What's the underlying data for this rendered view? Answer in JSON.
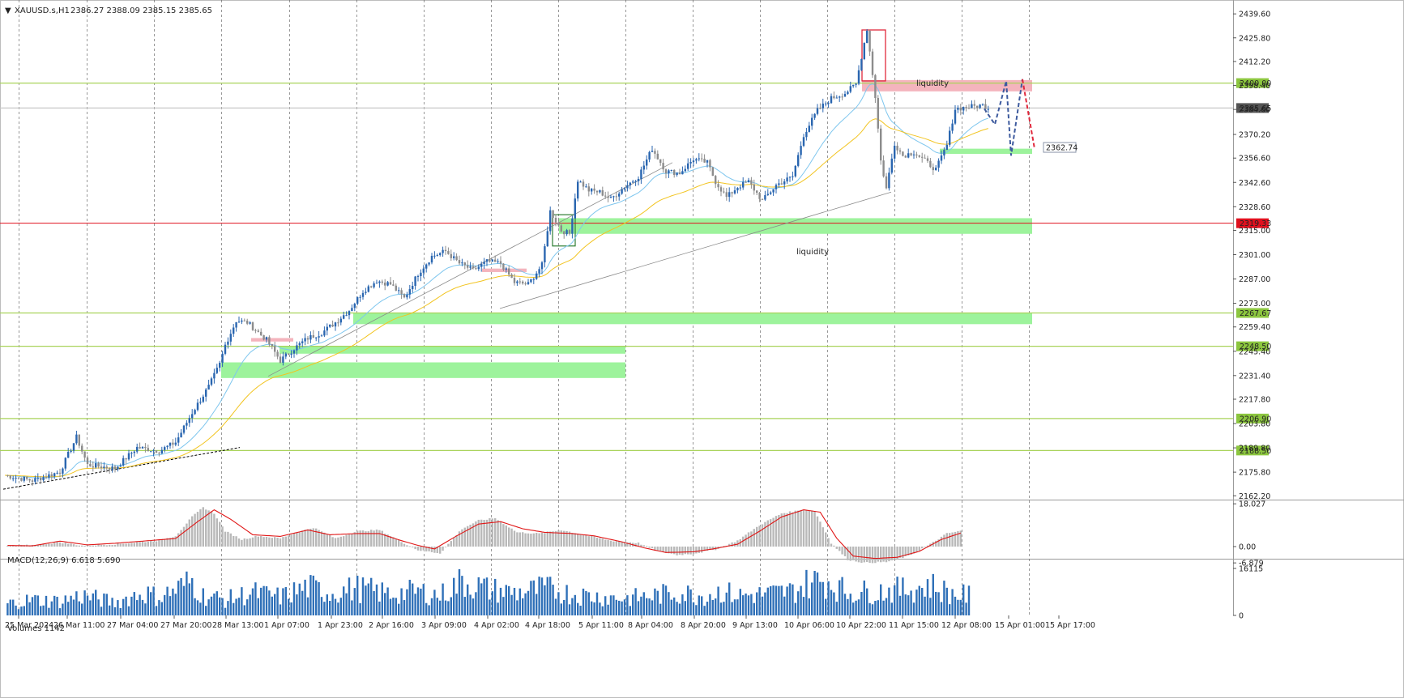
{
  "header": {
    "symbol": "XAUUSD.s,H1",
    "ohlc": "2386.27 2388.09 2385.15 2385.65"
  },
  "chart_data": {
    "type": "candlestick",
    "symbol": "XAUUSD.s",
    "timeframe": "H1",
    "price_axis_ticks": [
      "2439.60",
      "2425.80",
      "2412.20",
      "2398.40",
      "2384.60",
      "2370.20",
      "2356.60",
      "2342.60",
      "2328.60",
      "2315.00",
      "2301.00",
      "2287.00",
      "2273.00",
      "2259.40",
      "2245.40",
      "2231.40",
      "2217.80",
      "2203.80",
      "2189.80",
      "2175.80",
      "2162.20"
    ],
    "ylim": [
      2160,
      2442
    ],
    "time_labels": [
      "25 Mar 2024",
      "26 Mar 11:00",
      "27 Mar 04:00",
      "27 Mar 20:00",
      "28 Mar 13:00",
      "1 Apr 07:00",
      "1 Apr 23:00",
      "2 Apr 16:00",
      "3 Apr 09:00",
      "4 Apr 02:00",
      "4 Apr 18:00",
      "5 Apr 11:00",
      "8 Apr 04:00",
      "8 Apr 20:00",
      "9 Apr 13:00",
      "10 Apr 06:00",
      "10 Apr 22:00",
      "11 Apr 15:00",
      "12 Apr 08:00",
      "15 Apr 01:00",
      "15 Apr 17:00"
    ],
    "price_path": [
      [
        0,
        2174
      ],
      [
        10,
        2171
      ],
      [
        20,
        2176
      ],
      [
        26,
        2196
      ],
      [
        30,
        2180
      ],
      [
        40,
        2178
      ],
      [
        48,
        2190
      ],
      [
        56,
        2188
      ],
      [
        62,
        2193
      ],
      [
        68,
        2210
      ],
      [
        74,
        2225
      ],
      [
        78,
        2238
      ],
      [
        80,
        2249
      ],
      [
        84,
        2263
      ],
      [
        88,
        2262
      ],
      [
        95,
        2252
      ],
      [
        100,
        2240
      ],
      [
        105,
        2247
      ],
      [
        110,
        2253
      ],
      [
        115,
        2256
      ],
      [
        120,
        2262
      ],
      [
        125,
        2269
      ],
      [
        130,
        2280
      ],
      [
        135,
        2286
      ],
      [
        140,
        2284
      ],
      [
        145,
        2276
      ],
      [
        150,
        2290
      ],
      [
        155,
        2300
      ],
      [
        160,
        2303
      ],
      [
        165,
        2296
      ],
      [
        170,
        2292
      ],
      [
        175,
        2297
      ],
      [
        180,
        2296
      ],
      [
        185,
        2285
      ],
      [
        190,
        2284
      ],
      [
        195,
        2295
      ],
      [
        198,
        2326
      ],
      [
        202,
        2315
      ],
      [
        205,
        2313
      ],
      [
        208,
        2344
      ],
      [
        212,
        2338
      ],
      [
        216,
        2337
      ],
      [
        220,
        2333
      ],
      [
        225,
        2340
      ],
      [
        230,
        2346
      ],
      [
        235,
        2362
      ],
      [
        240,
        2349
      ],
      [
        245,
        2348
      ],
      [
        250,
        2356
      ],
      [
        255,
        2354
      ],
      [
        258,
        2343
      ],
      [
        262,
        2334
      ],
      [
        266,
        2340
      ],
      [
        270,
        2343
      ],
      [
        275,
        2332
      ],
      [
        280,
        2341
      ],
      [
        286,
        2346
      ],
      [
        290,
        2370
      ],
      [
        295,
        2384
      ],
      [
        300,
        2391
      ],
      [
        305,
        2394
      ],
      [
        309,
        2399
      ],
      [
        313,
        2431
      ],
      [
        316,
        2392
      ],
      [
        318,
        2355
      ],
      [
        320,
        2339
      ],
      [
        323,
        2365
      ],
      [
        326,
        2358
      ],
      [
        330,
        2360
      ],
      [
        334,
        2355
      ],
      [
        338,
        2350
      ],
      [
        342,
        2364
      ],
      [
        345,
        2385
      ],
      [
        350,
        2386
      ],
      [
        355,
        2387
      ],
      [
        357,
        2385.65
      ]
    ],
    "overlays": {
      "levels": [
        2400.0,
        2385.65,
        2319.33,
        2267.67,
        2248.5,
        2206.9,
        2188.5
      ],
      "level_labels": [
        "2400.00",
        "2385.65",
        "2319.33",
        "2267.67",
        "2248.50",
        "2206.90",
        "2188.50"
      ],
      "target_label": "2362.74",
      "zone_labels": [
        "liquidity",
        "liquidity"
      ]
    },
    "macd": {
      "label": "MACD(12,26,9) 6.618 5.690",
      "ticks": [
        "18.027",
        "0.00",
        "-6.879"
      ],
      "ylim": [
        -8,
        19.5
      ],
      "hist": [
        [
          0,
          0.2
        ],
        [
          10,
          0.6
        ],
        [
          20,
          1.8
        ],
        [
          28,
          0.4
        ],
        [
          40,
          1.0
        ],
        [
          50,
          2.0
        ],
        [
          56,
          2.6
        ],
        [
          62,
          4.5
        ],
        [
          68,
          12.5
        ],
        [
          72,
          16.5
        ],
        [
          76,
          14.0
        ],
        [
          80,
          6.5
        ],
        [
          86,
          3.0
        ],
        [
          92,
          4.5
        ],
        [
          100,
          3.5
        ],
        [
          106,
          6.0
        ],
        [
          112,
          8.0
        ],
        [
          120,
          3.5
        ],
        [
          128,
          6.5
        ],
        [
          136,
          7.0
        ],
        [
          144,
          2.0
        ],
        [
          150,
          -1.5
        ],
        [
          158,
          -2.8
        ],
        [
          166,
          7.5
        ],
        [
          172,
          11.0
        ],
        [
          178,
          12.0
        ],
        [
          186,
          6.0
        ],
        [
          194,
          5.5
        ],
        [
          202,
          7.0
        ],
        [
          210,
          5.0
        ],
        [
          220,
          2.5
        ],
        [
          230,
          1.5
        ],
        [
          236,
          -1.5
        ],
        [
          244,
          -3.5
        ],
        [
          250,
          -3.0
        ],
        [
          258,
          -1.2
        ],
        [
          266,
          2.5
        ],
        [
          274,
          9.0
        ],
        [
          282,
          14.0
        ],
        [
          290,
          15.5
        ],
        [
          294,
          15.0
        ],
        [
          300,
          1.5
        ],
        [
          306,
          -5.5
        ],
        [
          312,
          -6.8
        ],
        [
          320,
          -6.5
        ],
        [
          328,
          -4.0
        ],
        [
          336,
          1.0
        ],
        [
          342,
          5.5
        ],
        [
          347,
          6.6
        ]
      ],
      "signal": [
        [
          0,
          0.5
        ],
        [
          10,
          0.3
        ],
        [
          20,
          2.3
        ],
        [
          30,
          0.7
        ],
        [
          40,
          1.4
        ],
        [
          50,
          2.3
        ],
        [
          62,
          3.4
        ],
        [
          70,
          10.5
        ],
        [
          76,
          15.5
        ],
        [
          82,
          11.5
        ],
        [
          90,
          5.0
        ],
        [
          100,
          4.3
        ],
        [
          110,
          7.0
        ],
        [
          118,
          5.0
        ],
        [
          128,
          5.5
        ],
        [
          136,
          5.5
        ],
        [
          144,
          2.5
        ],
        [
          150,
          0.5
        ],
        [
          156,
          -1.0
        ],
        [
          164,
          4.5
        ],
        [
          172,
          9.5
        ],
        [
          180,
          10.5
        ],
        [
          188,
          7.5
        ],
        [
          196,
          6.0
        ],
        [
          206,
          5.5
        ],
        [
          214,
          4.5
        ],
        [
          224,
          2.0
        ],
        [
          232,
          -0.5
        ],
        [
          240,
          -2.5
        ],
        [
          250,
          -2.2
        ],
        [
          258,
          -0.8
        ],
        [
          266,
          1.0
        ],
        [
          274,
          6.5
        ],
        [
          282,
          12.5
        ],
        [
          290,
          15.5
        ],
        [
          296,
          14.5
        ],
        [
          302,
          3.5
        ],
        [
          308,
          -4.0
        ],
        [
          316,
          -5.0
        ],
        [
          324,
          -4.5
        ],
        [
          332,
          -2.0
        ],
        [
          340,
          3.0
        ],
        [
          347,
          5.69
        ]
      ]
    },
    "volumes": {
      "label": "Volumes 1142",
      "ticks": [
        "16115",
        "0"
      ],
      "ylim": [
        0,
        16500
      ],
      "profile": [
        [
          0,
          4000
        ],
        [
          10,
          5500
        ],
        [
          20,
          5000
        ],
        [
          28,
          7000
        ],
        [
          40,
          4500
        ],
        [
          50,
          8000
        ],
        [
          56,
          6500
        ],
        [
          62,
          9000
        ],
        [
          68,
          12000
        ],
        [
          72,
          7000
        ],
        [
          80,
          5500
        ],
        [
          90,
          8000
        ],
        [
          100,
          6500
        ],
        [
          110,
          10000
        ],
        [
          118,
          8000
        ],
        [
          128,
          9500
        ],
        [
          140,
          7500
        ],
        [
          150,
          8500
        ],
        [
          158,
          7000
        ],
        [
          166,
          12000
        ],
        [
          176,
          9000
        ],
        [
          186,
          8000
        ],
        [
          196,
          9500
        ],
        [
          206,
          7500
        ],
        [
          216,
          6500
        ],
        [
          226,
          6000
        ],
        [
          236,
          7000
        ],
        [
          244,
          8000
        ],
        [
          254,
          7000
        ],
        [
          260,
          8500
        ],
        [
          266,
          7000
        ],
        [
          276,
          7500
        ],
        [
          286,
          8500
        ],
        [
          292,
          11500
        ],
        [
          298,
          12500
        ],
        [
          306,
          8000
        ],
        [
          316,
          8500
        ],
        [
          326,
          9000
        ],
        [
          336,
          10500
        ],
        [
          344,
          7500
        ],
        [
          350,
          7000
        ]
      ]
    }
  },
  "colors": {
    "up": "#2a66b0",
    "down": "#8c8c8c",
    "ema_fast": "#7ec6ee",
    "ema_slow": "#f2c420",
    "level_line": "#a9d35a",
    "resistance_zone": "#f4b4bd",
    "support_zone": "#9df39c",
    "red_line": "#e0101e",
    "macd_signal": "#e01515",
    "macd_hist": "#b9b9b9",
    "volume": "#2f70b8",
    "forecast_blue": "#3d5a9e",
    "forecast_red": "#e0283c"
  }
}
